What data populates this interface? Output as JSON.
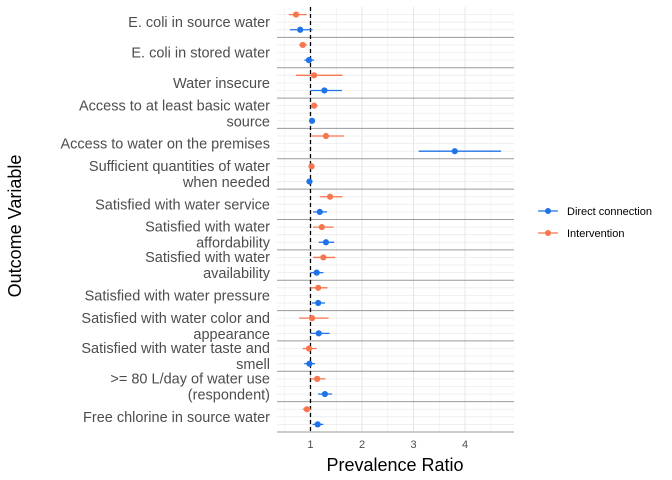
{
  "chart_data": {
    "type": "forest",
    "xlabel": "Prevalence Ratio",
    "ylabel": "Outcome Variable",
    "xlim": [
      0.35,
      4.95
    ],
    "x_ticks": [
      1,
      2,
      3,
      4
    ],
    "reference_line": 1,
    "legend_position": "right",
    "categories": [
      "E. coli in source water",
      "E. coli in stored water",
      "Water insecure",
      "Access to at least basic water source",
      "Access to water on the premises",
      "Sufficient quantities of water when needed",
      "Satisfied with water service",
      "Satisfied with water affordability",
      "Satisfied with water availability",
      "Satisfied with water pressure",
      "Satisfied with water color and appearance",
      "Satisfied with water taste and smell",
      ">= 80 L/day of water use (respondent)",
      "Free chlorine in source water"
    ],
    "series": [
      {
        "name": "Intervention",
        "color": "#f8764f",
        "points": [
          {
            "est": 0.72,
            "lo": 0.58,
            "hi": 0.92
          },
          {
            "est": 0.85,
            "lo": 0.78,
            "hi": 0.93
          },
          {
            "est": 1.07,
            "lo": 0.72,
            "hi": 1.62
          },
          {
            "est": 1.07,
            "lo": 1.01,
            "hi": 1.14
          },
          {
            "est": 1.3,
            "lo": 1.03,
            "hi": 1.65
          },
          {
            "est": 1.02,
            "lo": 0.98,
            "hi": 1.05
          },
          {
            "est": 1.38,
            "lo": 1.18,
            "hi": 1.62
          },
          {
            "est": 1.22,
            "lo": 1.05,
            "hi": 1.45
          },
          {
            "est": 1.25,
            "lo": 1.05,
            "hi": 1.48
          },
          {
            "est": 1.15,
            "lo": 1.0,
            "hi": 1.33
          },
          {
            "est": 1.03,
            "lo": 0.78,
            "hi": 1.35
          },
          {
            "est": 0.97,
            "lo": 0.85,
            "hi": 1.12
          },
          {
            "est": 1.13,
            "lo": 1.0,
            "hi": 1.29
          },
          {
            "est": 0.93,
            "lo": 0.85,
            "hi": 1.01
          }
        ]
      },
      {
        "name": "Direct connection",
        "color": "#1e73e8",
        "points": [
          {
            "est": 0.8,
            "lo": 0.6,
            "hi": 1.04
          },
          {
            "est": 0.97,
            "lo": 0.88,
            "hi": 1.07
          },
          {
            "est": 1.27,
            "lo": 1.0,
            "hi": 1.61
          },
          {
            "est": 1.03,
            "lo": 0.99,
            "hi": 1.06
          },
          {
            "est": 3.8,
            "lo": 3.1,
            "hi": 4.7
          },
          {
            "est": 0.98,
            "lo": 0.95,
            "hi": 1.02
          },
          {
            "est": 1.18,
            "lo": 1.05,
            "hi": 1.32
          },
          {
            "est": 1.3,
            "lo": 1.16,
            "hi": 1.46
          },
          {
            "est": 1.12,
            "lo": 1.0,
            "hi": 1.25
          },
          {
            "est": 1.15,
            "lo": 1.03,
            "hi": 1.28
          },
          {
            "est": 1.16,
            "lo": 1.0,
            "hi": 1.37
          },
          {
            "est": 0.98,
            "lo": 0.88,
            "hi": 1.09
          },
          {
            "est": 1.28,
            "lo": 1.15,
            "hi": 1.42
          },
          {
            "est": 1.14,
            "lo": 1.04,
            "hi": 1.25
          }
        ]
      }
    ]
  }
}
